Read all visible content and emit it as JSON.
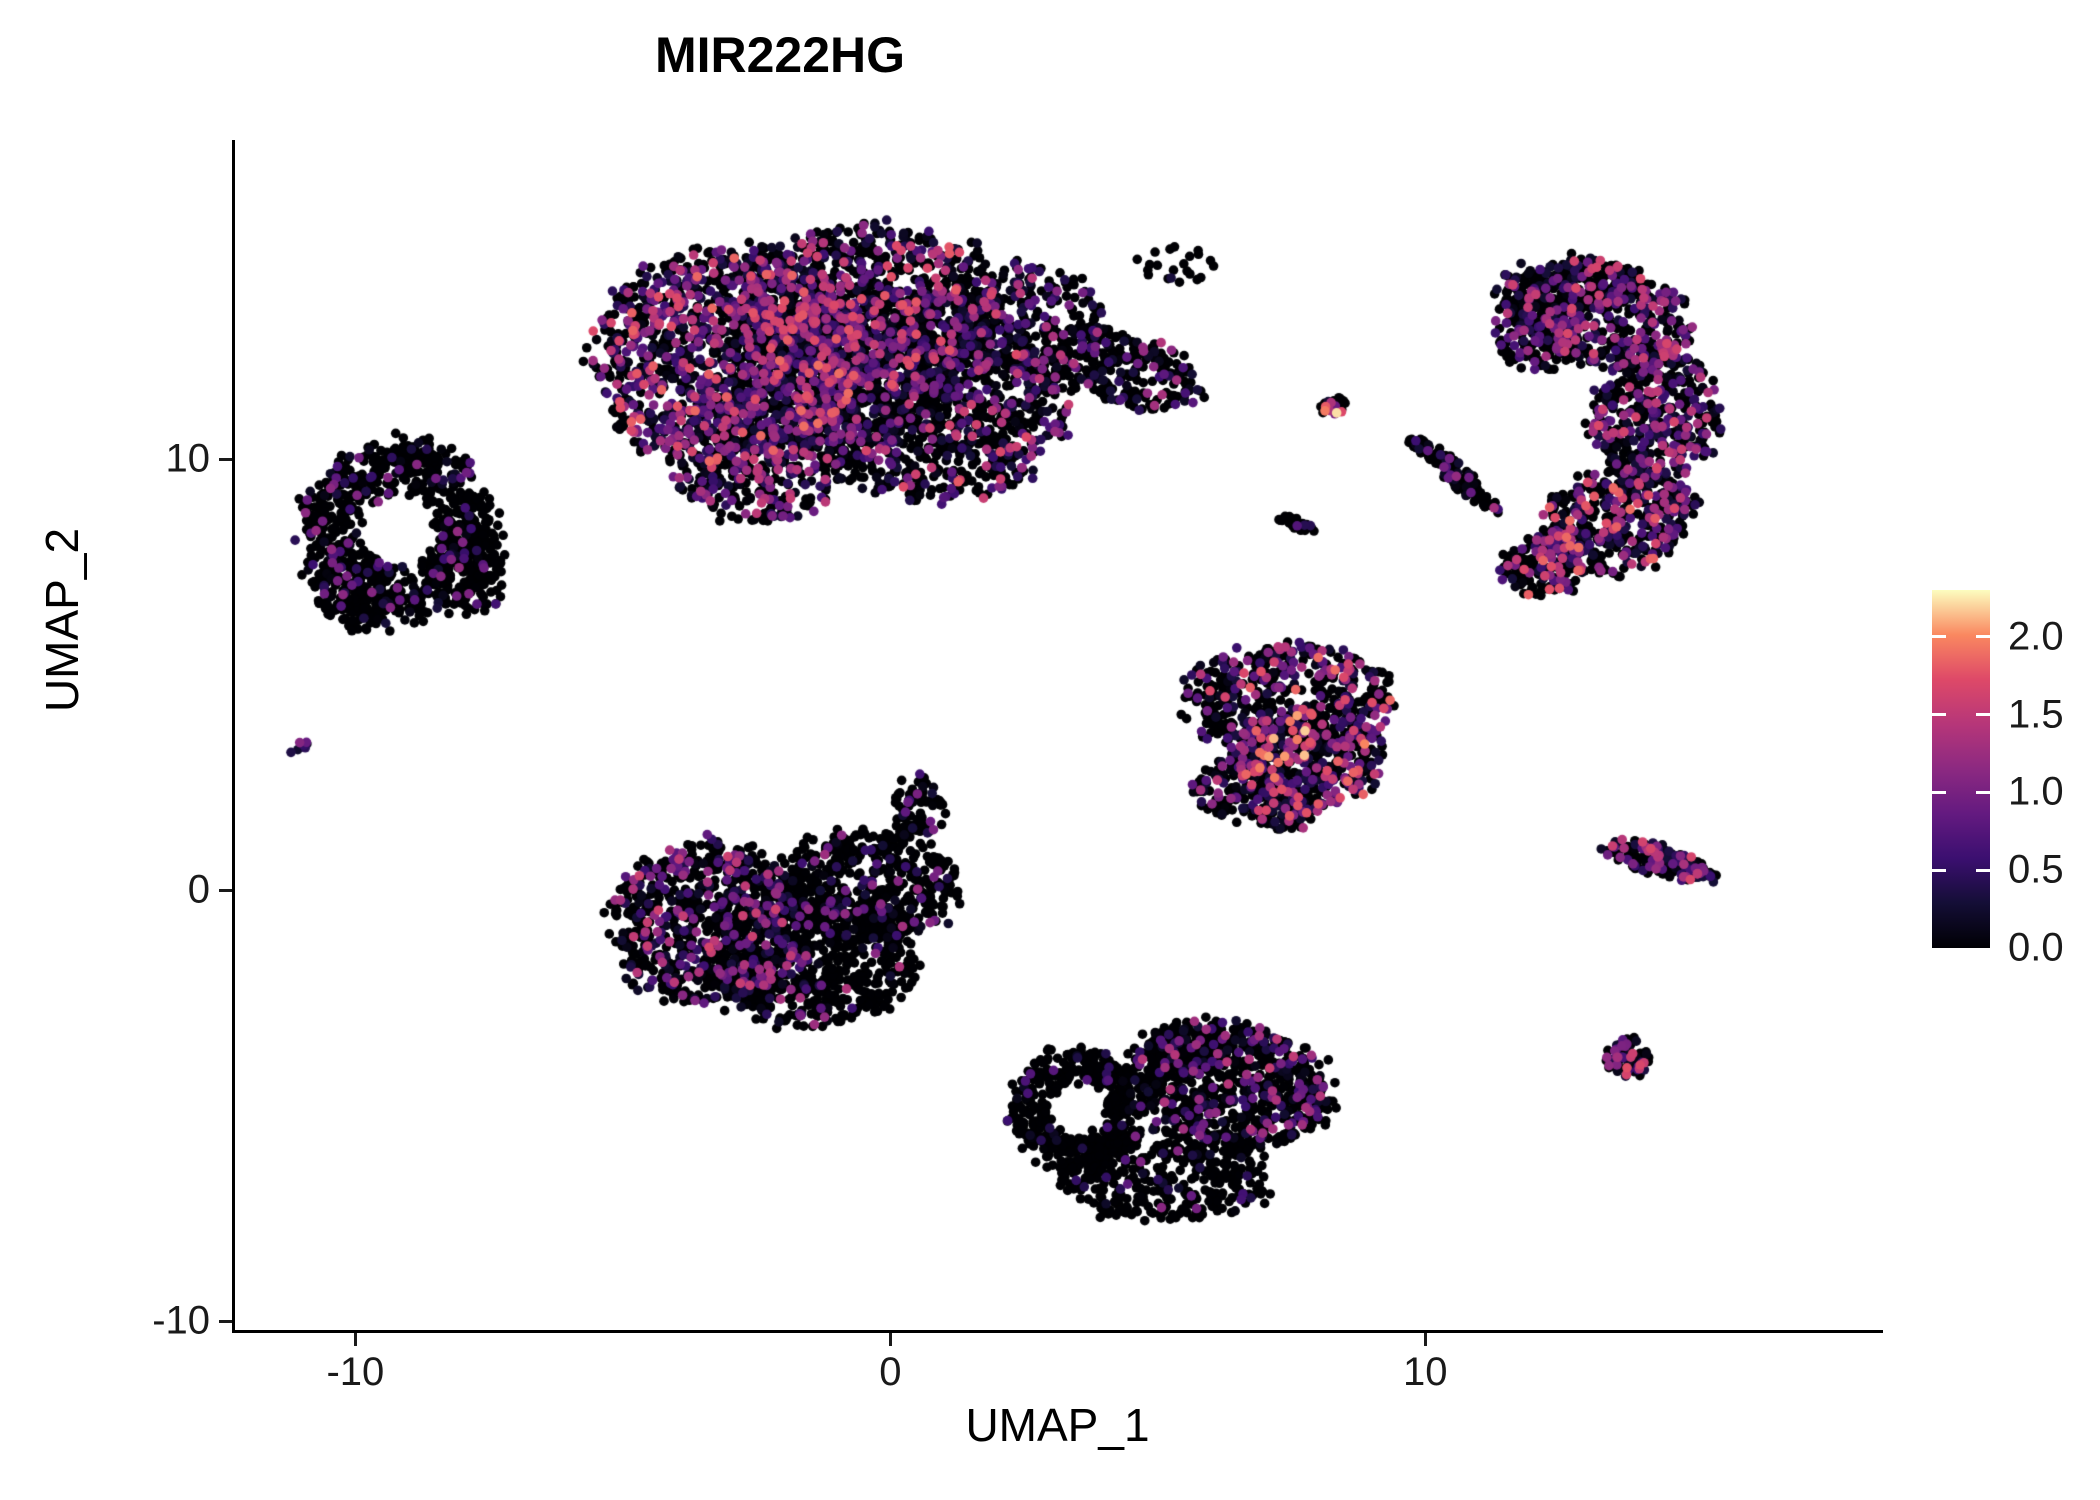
{
  "title": "MIR222HG",
  "chart_data": {
    "type": "scatter",
    "title": "MIR222HG",
    "xlabel": "UMAP_1",
    "ylabel": "UMAP_2",
    "xlim": [
      -12.25,
      18.5
    ],
    "ylim": [
      -10.2,
      17.4
    ],
    "grid": false,
    "legend_position": "right",
    "xticks": [
      {
        "value": -10,
        "label": "-10"
      },
      {
        "value": 0,
        "label": "0"
      },
      {
        "value": 10,
        "label": "10"
      }
    ],
    "yticks": [
      {
        "value": 10,
        "label": "10"
      },
      {
        "value": 0,
        "label": "0"
      },
      {
        "value": -10,
        "label": "-10"
      }
    ],
    "colorbar": {
      "cmax": 2.3,
      "palette": "magma",
      "ticks": [
        {
          "value": 2.0,
          "label": "2.0"
        },
        {
          "value": 1.5,
          "label": "1.5"
        },
        {
          "value": 1.0,
          "label": "1.0"
        },
        {
          "value": 0.5,
          "label": "0.5"
        },
        {
          "value": 0.0,
          "label": "0.0"
        }
      ],
      "stops": [
        {
          "t": 0,
          "color": "#000004"
        },
        {
          "t": 0.125,
          "color": "#140E36"
        },
        {
          "t": 0.25,
          "color": "#3B0F70"
        },
        {
          "t": 0.375,
          "color": "#641A80"
        },
        {
          "t": 0.5,
          "color": "#8C2981"
        },
        {
          "t": 0.625,
          "color": "#B63679"
        },
        {
          "t": 0.75,
          "color": "#DE4968"
        },
        {
          "t": 0.875,
          "color": "#FA8860"
        },
        {
          "t": 1,
          "color": "#FCFDBF"
        }
      ]
    },
    "point_radius_px": 4.8,
    "seed": 1234,
    "clusters": [
      {
        "name": "top-main-left",
        "shape": "blob",
        "cx": -2.9,
        "cy": 12.3,
        "rx": 2.6,
        "ry": 2.5,
        "rot": 0,
        "n": 1400,
        "p0": 0.38,
        "emax": 1.9,
        "pow": 1.7
      },
      {
        "name": "top-main-upper",
        "shape": "blob",
        "cx": -0.3,
        "cy": 13.5,
        "rx": 2.6,
        "ry": 1.9,
        "rot": 0,
        "n": 1000,
        "p0": 0.5,
        "emax": 1.8,
        "pow": 2
      },
      {
        "name": "top-main-lower",
        "shape": "blob",
        "cx": 0.9,
        "cy": 11.2,
        "rx": 2.4,
        "ry": 2.1,
        "rot": 0,
        "n": 900,
        "p0": 0.52,
        "emax": 1.8,
        "pow": 2
      },
      {
        "name": "top-main-sw",
        "shape": "blob",
        "cx": -2.5,
        "cy": 9.9,
        "rx": 1.6,
        "ry": 1.4,
        "rot": 0,
        "n": 350,
        "p0": 0.45,
        "emax": 1.6,
        "pow": 1.8
      },
      {
        "name": "top-main-e",
        "shape": "blob",
        "cx": 2.6,
        "cy": 13.0,
        "rx": 1.4,
        "ry": 1.5,
        "rot": 0,
        "n": 280,
        "p0": 0.6,
        "emax": 1.5,
        "pow": 2
      },
      {
        "name": "top-main-core",
        "shape": "blob",
        "cx": -0.9,
        "cy": 11.9,
        "rx": 2.2,
        "ry": 2.0,
        "rot": 0,
        "n": 700,
        "p0": 0.72,
        "emax": 1.3,
        "pow": 2
      },
      {
        "name": "top-arm",
        "shape": "blob",
        "cx": 4.4,
        "cy": 12.1,
        "rx": 1.5,
        "ry": 0.8,
        "rot": -25,
        "n": 240,
        "p0": 0.62,
        "emax": 1.4,
        "pow": 2
      },
      {
        "name": "top-arm-dots",
        "shape": "blob",
        "cx": 5.4,
        "cy": 14.5,
        "rx": 0.8,
        "ry": 0.45,
        "rot": 0,
        "n": 22,
        "p0": 0.85,
        "emax": 1.0,
        "pow": 2
      },
      {
        "name": "left-ring",
        "shape": "ring",
        "cx": -9.2,
        "cy": 8.3,
        "rx": 1.8,
        "ry": 2.1,
        "rot": 0,
        "inner": 0.4,
        "n": 750,
        "p0": 0.85,
        "emax": 1.2,
        "pow": 2.2
      },
      {
        "name": "left-ring-sw",
        "shape": "blob",
        "cx": -9.9,
        "cy": 6.9,
        "rx": 0.8,
        "ry": 0.9,
        "rot": 0,
        "n": 150,
        "p0": 0.85,
        "emax": 1.1,
        "pow": 2
      },
      {
        "name": "left-ring-e",
        "shape": "blob",
        "cx": -7.9,
        "cy": 7.4,
        "rx": 0.7,
        "ry": 1.1,
        "rot": 0,
        "n": 130,
        "p0": 0.82,
        "emax": 1.2,
        "pow": 2
      },
      {
        "name": "left-tiny",
        "shape": "blob",
        "cx": -11.05,
        "cy": 3.3,
        "rx": 0.18,
        "ry": 0.18,
        "rot": 0,
        "n": 7,
        "p0": 0.5,
        "emax": 1.1,
        "pow": 1.5
      },
      {
        "name": "midleft-w",
        "shape": "blob",
        "cx": -3.4,
        "cy": -0.8,
        "rx": 1.8,
        "ry": 1.9,
        "rot": 0,
        "n": 800,
        "p0": 0.62,
        "emax": 1.7,
        "pow": 1.8
      },
      {
        "name": "midleft-s",
        "shape": "blob",
        "cx": -1.5,
        "cy": -1.5,
        "rx": 2.0,
        "ry": 1.6,
        "rot": 0,
        "n": 700,
        "p0": 0.86,
        "emax": 1.4,
        "pow": 2
      },
      {
        "name": "midleft-e",
        "shape": "blob",
        "cx": -0.4,
        "cy": 0.1,
        "rx": 1.7,
        "ry": 1.3,
        "rot": 0,
        "n": 450,
        "p0": 0.86,
        "emax": 1.3,
        "pow": 2
      },
      {
        "name": "midleft-tip",
        "shape": "blob",
        "cx": 0.5,
        "cy": 1.9,
        "rx": 0.5,
        "ry": 0.8,
        "rot": 0,
        "n": 80,
        "p0": 0.75,
        "emax": 1.2,
        "pow": 2
      },
      {
        "name": "midright-n",
        "shape": "blob",
        "cx": 7.4,
        "cy": 4.4,
        "rx": 1.9,
        "ry": 1.3,
        "rot": 0,
        "n": 550,
        "p0": 0.55,
        "emax": 1.9,
        "pow": 1.8
      },
      {
        "name": "midright-c",
        "shape": "blob",
        "cx": 7.8,
        "cy": 3.0,
        "rx": 1.4,
        "ry": 1.1,
        "rot": 0,
        "n": 380,
        "p0": 0.42,
        "emax": 2.2,
        "pow": 1.6
      },
      {
        "name": "midright-w",
        "shape": "blob",
        "cx": 6.6,
        "cy": 2.4,
        "rx": 0.9,
        "ry": 0.8,
        "rot": 0,
        "n": 160,
        "p0": 0.6,
        "emax": 1.5,
        "pow": 2
      },
      {
        "name": "midright-tip",
        "shape": "blob",
        "cx": 7.4,
        "cy": 1.9,
        "rx": 0.6,
        "ry": 0.5,
        "rot": 0,
        "n": 80,
        "p0": 0.5,
        "emax": 1.8,
        "pow": 1.8
      },
      {
        "name": "bottom-ring",
        "shape": "ring",
        "cx": 3.5,
        "cy": -5.1,
        "rx": 1.2,
        "ry": 1.4,
        "rot": 0,
        "inner": 0.45,
        "n": 450,
        "p0": 0.92,
        "emax": 1.0,
        "pow": 2.2
      },
      {
        "name": "bottom-e",
        "shape": "blob",
        "cx": 6.4,
        "cy": -4.5,
        "rx": 1.9,
        "ry": 1.4,
        "rot": -15,
        "n": 750,
        "p0": 0.68,
        "emax": 1.6,
        "pow": 2
      },
      {
        "name": "bottom-s",
        "shape": "blob",
        "cx": 5.2,
        "cy": -6.6,
        "rx": 2.0,
        "ry": 1.1,
        "rot": 0,
        "n": 380,
        "p0": 0.88,
        "emax": 1.2,
        "pow": 2.2
      },
      {
        "name": "bottom-n",
        "shape": "blob",
        "cx": 5.6,
        "cy": -3.6,
        "rx": 1.0,
        "ry": 0.6,
        "rot": 0,
        "n": 120,
        "p0": 0.8,
        "emax": 1.2,
        "pow": 2
      },
      {
        "name": "crescent-top",
        "shape": "blob",
        "cx": 13.2,
        "cy": 13.4,
        "rx": 1.8,
        "ry": 1.2,
        "rot": -15,
        "n": 480,
        "p0": 0.5,
        "emax": 1.7,
        "pow": 1.8
      },
      {
        "name": "crescent-mid",
        "shape": "blob",
        "cx": 14.3,
        "cy": 11.0,
        "rx": 1.2,
        "ry": 1.6,
        "rot": 0,
        "n": 420,
        "p0": 0.48,
        "emax": 1.7,
        "pow": 1.8
      },
      {
        "name": "crescent-low",
        "shape": "blob",
        "cx": 13.6,
        "cy": 8.6,
        "rx": 1.5,
        "ry": 1.2,
        "rot": 30,
        "n": 420,
        "p0": 0.45,
        "emax": 1.9,
        "pow": 1.7
      },
      {
        "name": "crescent-hook",
        "shape": "blob",
        "cx": 12.2,
        "cy": 7.5,
        "rx": 0.8,
        "ry": 0.7,
        "rot": 0,
        "n": 160,
        "p0": 0.5,
        "emax": 1.9,
        "pow": 1.8
      },
      {
        "name": "crescent-nw",
        "shape": "blob",
        "cx": 12.1,
        "cy": 13.0,
        "rx": 0.8,
        "ry": 0.9,
        "rot": 0,
        "n": 130,
        "p0": 0.55,
        "emax": 1.5,
        "pow": 2
      },
      {
        "name": "crescent-ntop",
        "shape": "blob",
        "cx": 12.9,
        "cy": 14.0,
        "rx": 1.3,
        "ry": 0.6,
        "rot": 0,
        "n": 150,
        "p0": 0.8,
        "emax": 1.2,
        "pow": 2
      },
      {
        "name": "streak-a",
        "shape": "blob",
        "cx": 10.3,
        "cy": 10.0,
        "rx": 0.8,
        "ry": 0.16,
        "rot": -40,
        "n": 70,
        "p0": 0.78,
        "emax": 1.4,
        "pow": 2
      },
      {
        "name": "streak-b",
        "shape": "blob",
        "cx": 10.9,
        "cy": 9.2,
        "rx": 0.7,
        "ry": 0.14,
        "rot": -40,
        "n": 55,
        "p0": 0.78,
        "emax": 1.4,
        "pow": 2
      },
      {
        "name": "streak-c",
        "shape": "blob",
        "cx": 7.6,
        "cy": 8.5,
        "rx": 0.45,
        "ry": 0.12,
        "rot": -25,
        "n": 28,
        "p0": 0.9,
        "emax": 1.0,
        "pow": 2
      },
      {
        "name": "spot-orange",
        "shape": "blob",
        "cx": 8.3,
        "cy": 11.2,
        "rx": 0.3,
        "ry": 0.25,
        "rot": 0,
        "n": 22,
        "p0": 0.35,
        "emax": 2.3,
        "pow": 1.2
      },
      {
        "name": "right-bar",
        "shape": "blob",
        "cx": 14.3,
        "cy": 0.7,
        "rx": 1.0,
        "ry": 0.35,
        "rot": -18,
        "n": 170,
        "p0": 0.55,
        "emax": 1.7,
        "pow": 1.8
      },
      {
        "name": "right-bar-tail",
        "shape": "blob",
        "cx": 15.1,
        "cy": 0.35,
        "rx": 0.4,
        "ry": 0.2,
        "rot": -18,
        "n": 40,
        "p0": 0.5,
        "emax": 1.5,
        "pow": 2
      },
      {
        "name": "right-small",
        "shape": "blob",
        "cx": 13.8,
        "cy": -3.9,
        "rx": 0.4,
        "ry": 0.45,
        "rot": 0,
        "n": 80,
        "p0": 0.45,
        "emax": 1.8,
        "pow": 1.5
      }
    ]
  }
}
